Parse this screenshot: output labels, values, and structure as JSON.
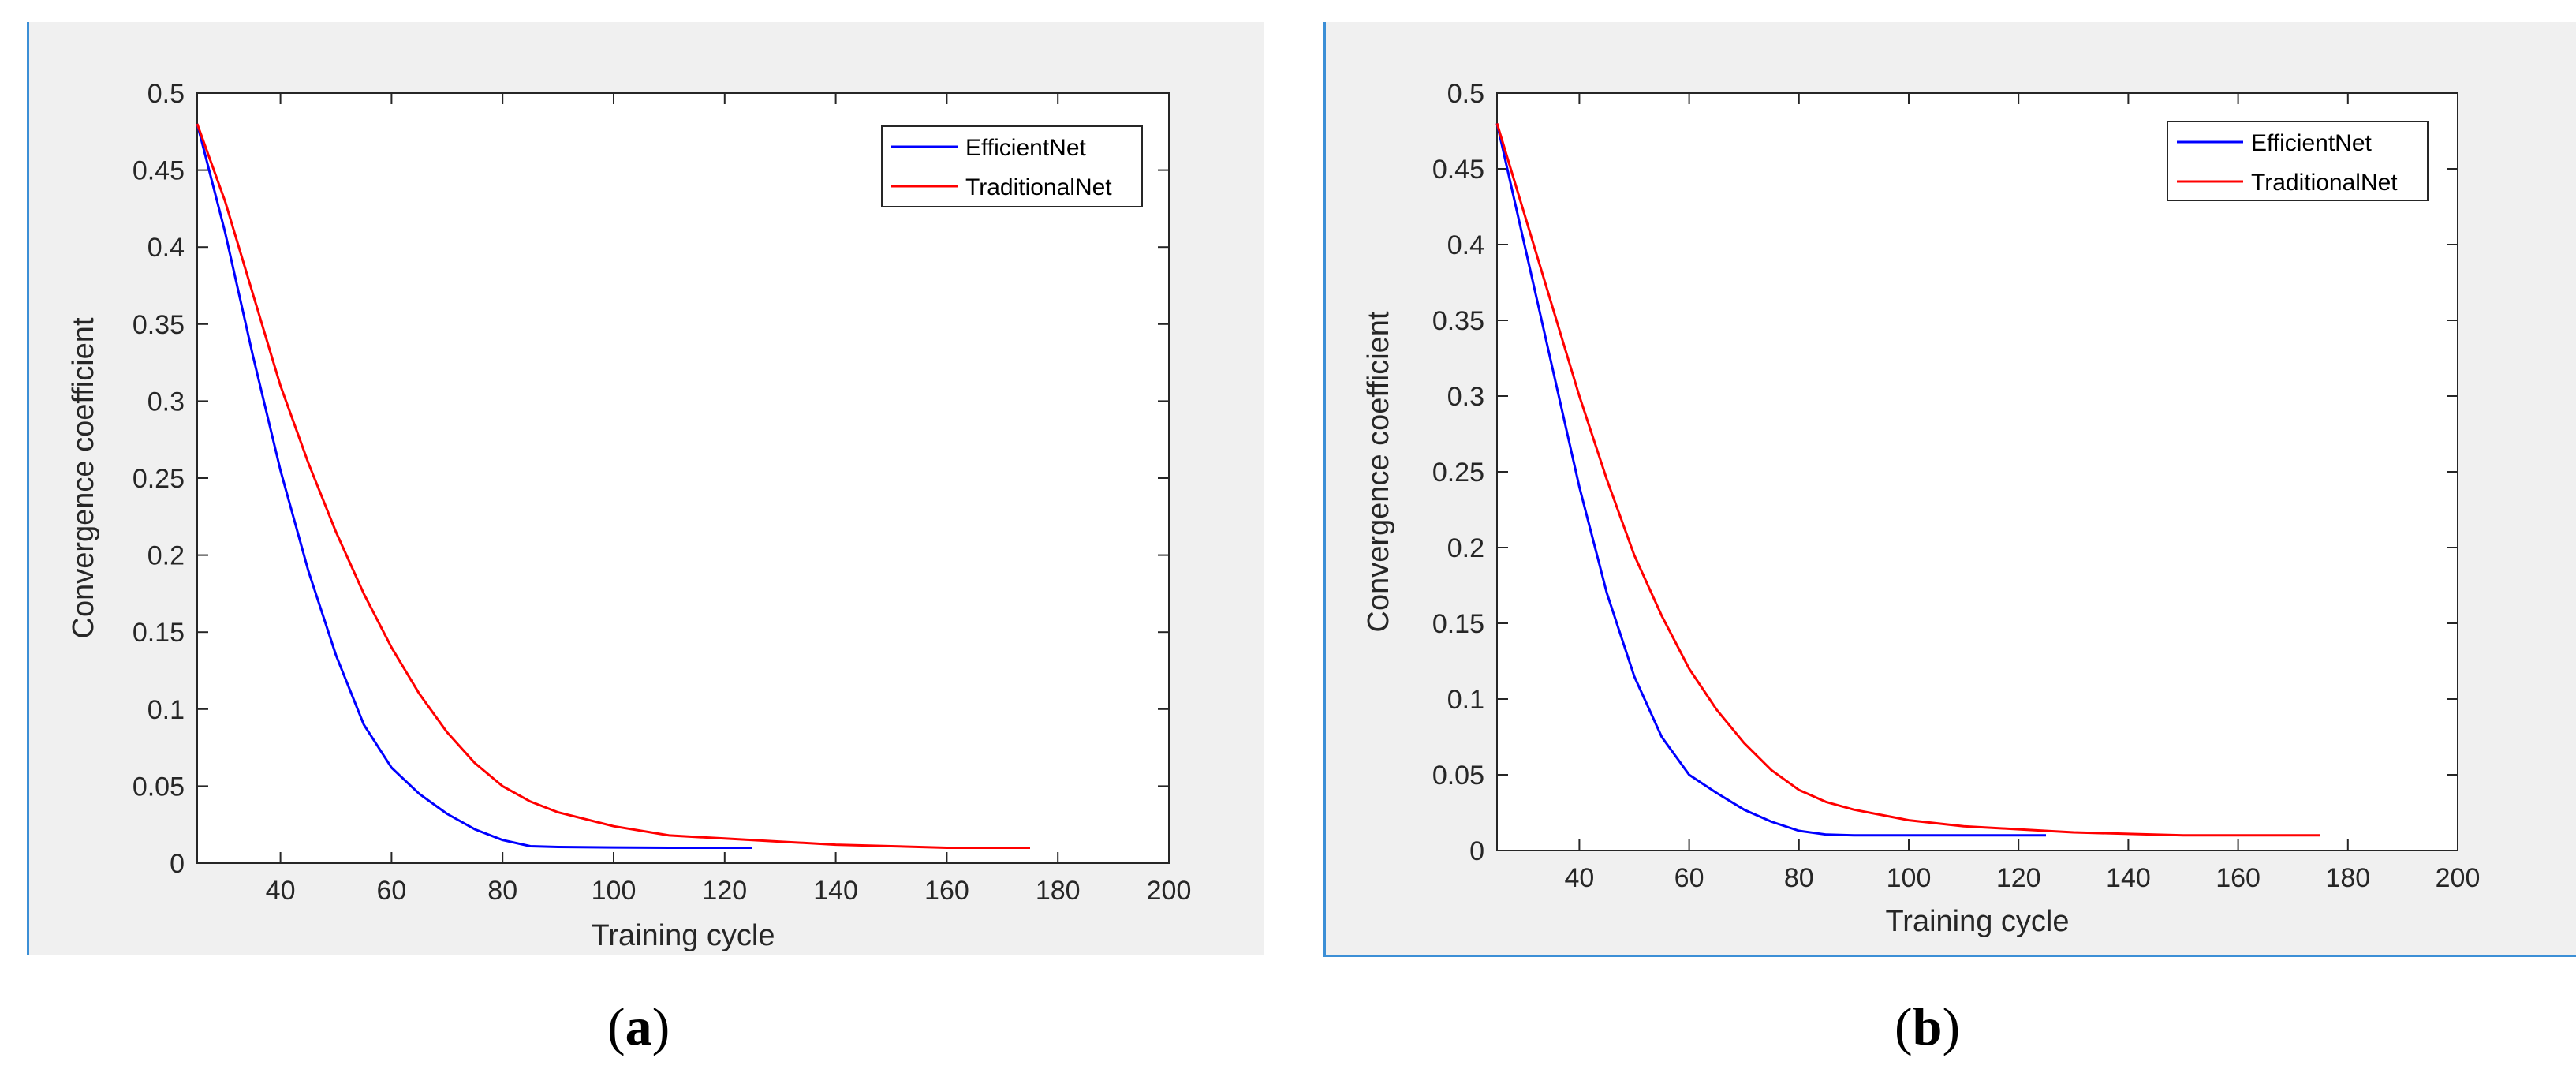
{
  "panels": [
    {
      "label_open": "(",
      "label_letter": "a",
      "label_close": ")"
    },
    {
      "label_open": "(",
      "label_letter": "b",
      "label_close": ")"
    }
  ],
  "colors": {
    "efficientnet": "#0000ff",
    "traditionalnet": "#ff0000",
    "background": "#f0f0f0",
    "axes": "#ffffff"
  },
  "chart_data": [
    {
      "type": "line",
      "title": "",
      "xlabel": "Training cycle",
      "ylabel": "Convergence coefficient",
      "xlim": [
        25,
        200
      ],
      "ylim": [
        0,
        0.5
      ],
      "xticks": [
        40,
        60,
        80,
        100,
        120,
        140,
        160,
        180,
        200
      ],
      "yticks": [
        0,
        0.05,
        0.1,
        0.15,
        0.2,
        0.25,
        0.3,
        0.35,
        0.4,
        0.45,
        0.5
      ],
      "legend_position": "top-right",
      "grid": false,
      "series": [
        {
          "name": "EfficientNet",
          "x": [
            25,
            30,
            35,
            40,
            45,
            50,
            55,
            60,
            65,
            70,
            75,
            80,
            85,
            90,
            100,
            110,
            120,
            125
          ],
          "y": [
            0.48,
            0.41,
            0.33,
            0.255,
            0.19,
            0.135,
            0.09,
            0.062,
            0.045,
            0.032,
            0.022,
            0.015,
            0.011,
            0.0105,
            0.0102,
            0.01,
            0.01,
            0.01
          ]
        },
        {
          "name": "TraditionalNet",
          "x": [
            25,
            30,
            35,
            40,
            45,
            50,
            55,
            60,
            65,
            70,
            75,
            80,
            85,
            90,
            100,
            110,
            120,
            130,
            140,
            150,
            160,
            175
          ],
          "y": [
            0.48,
            0.43,
            0.37,
            0.31,
            0.26,
            0.215,
            0.175,
            0.14,
            0.11,
            0.085,
            0.065,
            0.05,
            0.04,
            0.033,
            0.024,
            0.018,
            0.016,
            0.014,
            0.012,
            0.011,
            0.01,
            0.01
          ]
        }
      ]
    },
    {
      "type": "line",
      "title": "",
      "xlabel": "Training cycle",
      "ylabel": "Convergence coefficient",
      "xlim": [
        25,
        200
      ],
      "ylim": [
        0,
        0.5
      ],
      "xticks": [
        40,
        60,
        80,
        100,
        120,
        140,
        160,
        180,
        200
      ],
      "yticks": [
        0,
        0.05,
        0.1,
        0.15,
        0.2,
        0.25,
        0.3,
        0.35,
        0.4,
        0.45,
        0.5
      ],
      "legend_position": "top-right",
      "grid": false,
      "series": [
        {
          "name": "EfficientNet",
          "x": [
            25,
            30,
            35,
            40,
            45,
            50,
            55,
            60,
            65,
            70,
            75,
            80,
            85,
            90,
            100,
            110,
            120,
            125
          ],
          "y": [
            0.48,
            0.4,
            0.32,
            0.24,
            0.17,
            0.115,
            0.075,
            0.05,
            0.038,
            0.027,
            0.019,
            0.013,
            0.0105,
            0.01,
            0.01,
            0.01,
            0.01,
            0.01
          ]
        },
        {
          "name": "TraditionalNet",
          "x": [
            25,
            30,
            35,
            40,
            45,
            50,
            55,
            60,
            65,
            70,
            75,
            80,
            85,
            90,
            100,
            110,
            120,
            130,
            140,
            150,
            160,
            175
          ],
          "y": [
            0.48,
            0.42,
            0.36,
            0.3,
            0.245,
            0.195,
            0.155,
            0.12,
            0.093,
            0.071,
            0.053,
            0.04,
            0.032,
            0.027,
            0.02,
            0.016,
            0.014,
            0.012,
            0.011,
            0.01,
            0.01,
            0.01
          ]
        }
      ]
    }
  ]
}
